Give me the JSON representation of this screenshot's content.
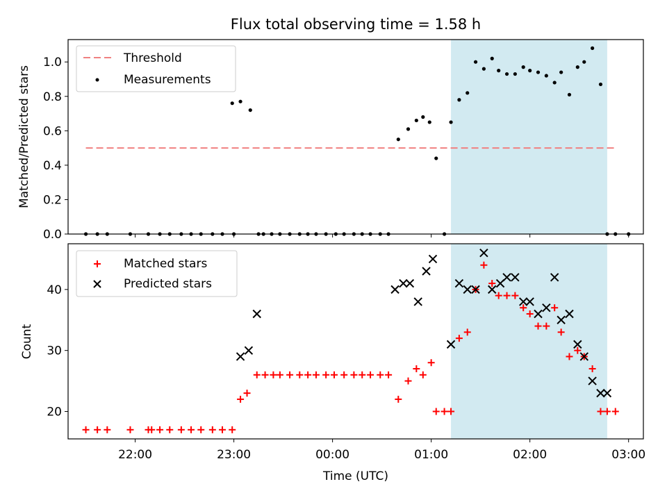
{
  "chart_data": [
    {
      "type": "scatter",
      "title": "Flux total observing time = 1.58 h",
      "xlabel": "",
      "ylabel": "Matched/Predicted stars",
      "ylim": [
        0,
        1.13
      ],
      "yticks": [
        "0.0",
        "0.2",
        "0.4",
        "0.6",
        "0.8",
        "1.0"
      ],
      "x_unit": "hours after 00:00 UTC",
      "shaded_interval": [
        "01:12",
        "02:47"
      ],
      "legend_position": "top-left",
      "threshold": {
        "name": "Threshold",
        "value": 0.5,
        "x_range": [
          "21:30",
          "02:52"
        ],
        "color": "#f08080"
      },
      "series": [
        {
          "name": "Measurements",
          "color": "#000000",
          "x": [
            "21:30",
            "21:37",
            "21:43",
            "21:57",
            "22:08",
            "22:15",
            "22:21",
            "22:28",
            "22:34",
            "22:40",
            "22:47",
            "22:53",
            "23:00",
            "22:59",
            "23:04",
            "23:10",
            "23:15",
            "23:18",
            "23:23",
            "23:28",
            "23:34",
            "23:40",
            "23:45",
            "23:50",
            "23:56",
            "00:02",
            "00:07",
            "00:13",
            "00:18",
            "00:23",
            "00:29",
            "00:34",
            "00:40",
            "00:46",
            "00:51",
            "00:55",
            "00:59",
            "01:03",
            "01:08",
            "01:12",
            "01:17",
            "01:22",
            "01:27",
            "01:32",
            "01:37",
            "01:41",
            "01:46",
            "01:51",
            "01:56",
            "02:00",
            "02:05",
            "02:10",
            "02:15",
            "02:19",
            "02:24",
            "02:29",
            "02:33",
            "02:38",
            "02:43",
            "02:47",
            "02:52",
            "03:00"
          ],
          "values": [
            0,
            0,
            0,
            0,
            0,
            0,
            0,
            0,
            0,
            0,
            0,
            0,
            0,
            0.76,
            0.77,
            0.72,
            0,
            0,
            0,
            0,
            0,
            0,
            0,
            0,
            0,
            0,
            0,
            0,
            0,
            0,
            0,
            0,
            0.55,
            0.61,
            0.66,
            0.68,
            0.65,
            0.44,
            0,
            0.65,
            0.78,
            0.82,
            1.0,
            0.96,
            1.02,
            0.95,
            0.93,
            0.93,
            0.97,
            0.95,
            0.94,
            0.92,
            0.88,
            0.94,
            0.81,
            0.97,
            1.0,
            1.08,
            0.87,
            0,
            0,
            0
          ]
        }
      ]
    },
    {
      "type": "scatter",
      "title": "",
      "xlabel": "Time (UTC)",
      "ylabel": "Count",
      "ylim": [
        15.5,
        47.5
      ],
      "yticks": [
        "20",
        "30",
        "40"
      ],
      "xticks": [
        "22:00",
        "23:00",
        "00:00",
        "01:00",
        "02:00",
        "03:00"
      ],
      "shaded_interval": [
        "01:12",
        "02:47"
      ],
      "legend_position": "top-left",
      "series": [
        {
          "name": "Matched stars",
          "marker": "+",
          "color": "#ff0000",
          "x": [
            "21:30",
            "21:37",
            "21:43",
            "21:57",
            "22:08",
            "22:10",
            "22:15",
            "22:21",
            "22:28",
            "22:34",
            "22:40",
            "22:47",
            "22:53",
            "22:59",
            "23:04",
            "23:08",
            "23:14",
            "23:19",
            "23:24",
            "23:28",
            "23:34",
            "23:40",
            "23:45",
            "23:50",
            "23:56",
            "00:01",
            "00:07",
            "00:13",
            "00:18",
            "00:23",
            "00:29",
            "00:34",
            "00:40",
            "00:46",
            "00:51",
            "00:55",
            "01:00",
            "01:03",
            "01:08",
            "01:12",
            "01:17",
            "01:22",
            "01:27",
            "01:32",
            "01:37",
            "01:41",
            "01:46",
            "01:51",
            "01:56",
            "02:00",
            "02:05",
            "02:10",
            "02:15",
            "02:19",
            "02:24",
            "02:29",
            "02:33",
            "02:38",
            "02:43",
            "02:47",
            "02:52"
          ],
          "values": [
            17,
            17,
            17,
            17,
            17,
            17,
            17,
            17,
            17,
            17,
            17,
            17,
            17,
            17,
            22,
            23,
            26,
            26,
            26,
            26,
            26,
            26,
            26,
            26,
            26,
            26,
            26,
            26,
            26,
            26,
            26,
            26,
            22,
            25,
            27,
            26,
            28,
            20,
            20,
            20,
            32,
            33,
            40,
            44,
            41,
            39,
            39,
            39,
            37,
            36,
            34,
            34,
            37,
            33,
            29,
            30,
            29,
            27,
            20,
            20,
            20
          ]
        },
        {
          "name": "Predicted stars",
          "marker": "x",
          "color": "#000000",
          "x": [
            "23:04",
            "23:09",
            "23:14",
            "00:38",
            "00:43",
            "00:47",
            "00:52",
            "00:57",
            "01:01",
            "01:12",
            "01:17",
            "01:22",
            "01:27",
            "01:32",
            "01:37",
            "01:42",
            "01:46",
            "01:51",
            "01:56",
            "02:00",
            "02:05",
            "02:10",
            "02:15",
            "02:19",
            "02:24",
            "02:29",
            "02:33",
            "02:38",
            "02:43",
            "02:47"
          ],
          "values": [
            29,
            30,
            36,
            40,
            41,
            41,
            38,
            43,
            45,
            31,
            41,
            40,
            40,
            46,
            40,
            41,
            42,
            42,
            38,
            38,
            36,
            37,
            42,
            35,
            36,
            31,
            29,
            25,
            23,
            23
          ]
        }
      ]
    }
  ]
}
